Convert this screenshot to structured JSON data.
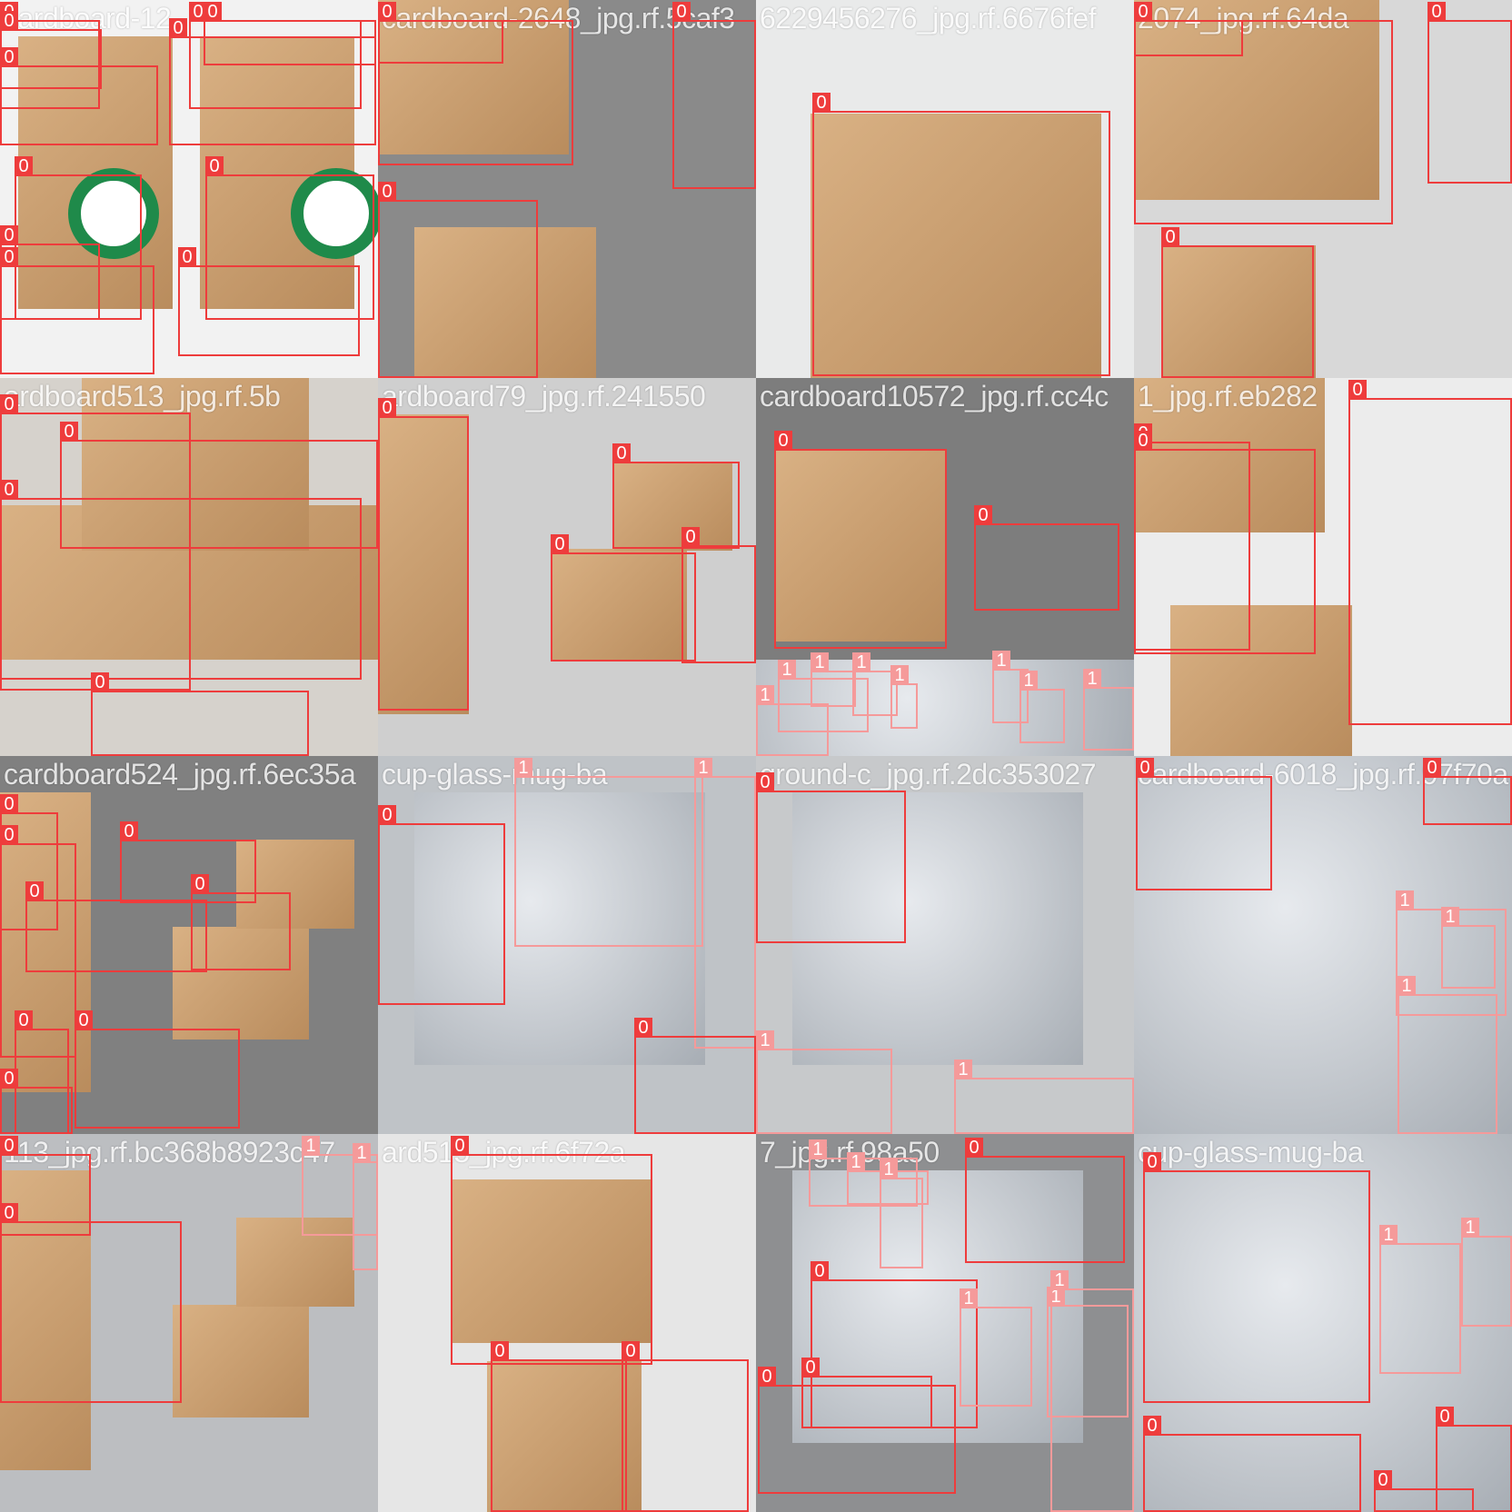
{
  "mosaic": {
    "class_colors": {
      "0": "#ee3c3c",
      "1": "#f59a9a"
    },
    "tiles": [
      {
        "filename": "cardboard-12",
        "bg": "#f2f2f2",
        "scene": "loop-carton"
      },
      {
        "filename": "cardboard-2648_jpg.rf.5caf3",
        "bg": "#8a8a8a",
        "scene": "carton-label"
      },
      {
        "filename": "6229456276_jpg.rf.6676fef",
        "bg": "#e9eaea",
        "scene": "carton-print"
      },
      {
        "filename": "2074_jpg.rf.64da",
        "bg": "#d8d8d8",
        "scene": "carton-worn"
      },
      {
        "filename": "ardboard513_jpg.rf.5b",
        "bg": "#d6d2cc",
        "scene": "carton-flat"
      },
      {
        "filename": "ardboard79_jpg.rf.241550",
        "bg": "#cfcfcf",
        "scene": "packaging-box"
      },
      {
        "filename": "cardboard10572_jpg.rf.cc4c",
        "bg": "#7d7d7d",
        "scene": "box-paper"
      },
      {
        "filename": "1_jpg.rf.eb282",
        "bg": "#ececec",
        "scene": "carton-label"
      },
      {
        "filename": "cardboard524_jpg.rf.6ec35a",
        "bg": "#808080",
        "scene": "packaging-box"
      },
      {
        "filename": "cup-glass-mug-ba",
        "bg": "#bfc3c7",
        "scene": "glass"
      },
      {
        "filename": "ground-c_jpg.rf.2dc353027",
        "bg": "#c7c9cb",
        "scene": "glass"
      },
      {
        "filename": "cardboard-6018_jpg.rf.97f70a",
        "bg": "#9aa0a8",
        "scene": "yogurt"
      },
      {
        "filename": "113_jpg.rf.bc368b8923c47",
        "bg": "#bcbec1",
        "scene": "packaging-box"
      },
      {
        "filename": "ard515_jpg.rf.6f72a",
        "bg": "#e6e6e6",
        "scene": "carton-open"
      },
      {
        "filename": "7_jpg.rf.98a50",
        "bg": "#8e8f91",
        "scene": "glass"
      },
      {
        "filename": "cup-glass-mug-ba",
        "bg": "#e9ecef",
        "scene": "yogurt"
      }
    ],
    "boxes": [
      {
        "tile": 0,
        "cls": "0",
        "label": "0"
      },
      {
        "tile": 0,
        "cls": "0",
        "label": "0"
      },
      {
        "tile": 0,
        "cls": "0",
        "label": "0"
      },
      {
        "tile": 0,
        "cls": "0",
        "label": "0"
      },
      {
        "tile": 0,
        "cls": "0",
        "label": "0"
      },
      {
        "tile": 0,
        "cls": "0",
        "label": "0"
      },
      {
        "tile": 0,
        "cls": "0",
        "label": "0"
      },
      {
        "tile": 0,
        "cls": "0",
        "label": "0"
      },
      {
        "tile": 0,
        "cls": "0",
        "label": "0"
      },
      {
        "tile": 0,
        "cls": "0",
        "label": "0"
      },
      {
        "tile": 0,
        "cls": "0",
        "label": "0"
      },
      {
        "tile": 1,
        "cls": "0",
        "label": "0"
      },
      {
        "tile": 1,
        "cls": "0",
        "label": "0"
      },
      {
        "tile": 1,
        "cls": "0",
        "label": "0"
      },
      {
        "tile": 1,
        "cls": "0",
        "label": "0"
      },
      {
        "tile": 2,
        "cls": "0",
        "label": "0"
      },
      {
        "tile": 3,
        "cls": "0",
        "label": "0"
      },
      {
        "tile": 3,
        "cls": "0",
        "label": "0"
      },
      {
        "tile": 3,
        "cls": "0",
        "label": "0"
      },
      {
        "tile": 3,
        "cls": "0",
        "label": "0"
      },
      {
        "tile": 4,
        "cls": "0",
        "label": "0"
      },
      {
        "tile": 4,
        "cls": "0",
        "label": "0"
      },
      {
        "tile": 4,
        "cls": "0",
        "label": "0"
      },
      {
        "tile": 4,
        "cls": "0",
        "label": "0"
      },
      {
        "tile": 5,
        "cls": "0",
        "label": "0"
      },
      {
        "tile": 5,
        "cls": "0",
        "label": "0"
      },
      {
        "tile": 5,
        "cls": "0",
        "label": "0"
      },
      {
        "tile": 5,
        "cls": "0",
        "label": "0"
      },
      {
        "tile": 6,
        "cls": "0",
        "label": "0"
      },
      {
        "tile": 6,
        "cls": "0",
        "label": "0"
      },
      {
        "tile": 6,
        "cls": "1",
        "label": "1"
      },
      {
        "tile": 6,
        "cls": "1",
        "label": "1"
      },
      {
        "tile": 6,
        "cls": "1",
        "label": "1"
      },
      {
        "tile": 6,
        "cls": "1",
        "label": "1"
      },
      {
        "tile": 6,
        "cls": "1",
        "label": "1"
      },
      {
        "tile": 6,
        "cls": "1",
        "label": "1"
      },
      {
        "tile": 6,
        "cls": "1",
        "label": "1"
      },
      {
        "tile": 6,
        "cls": "1",
        "label": "1"
      },
      {
        "tile": 7,
        "cls": "0",
        "label": "0"
      },
      {
        "tile": 7,
        "cls": "0",
        "label": "0"
      },
      {
        "tile": 7,
        "cls": "0",
        "label": "0"
      },
      {
        "tile": 8,
        "cls": "0",
        "label": "0"
      },
      {
        "tile": 8,
        "cls": "0",
        "label": "0"
      },
      {
        "tile": 8,
        "cls": "0",
        "label": "0"
      },
      {
        "tile": 8,
        "cls": "0",
        "label": "0"
      },
      {
        "tile": 8,
        "cls": "0",
        "label": "0"
      },
      {
        "tile": 8,
        "cls": "0",
        "label": "0"
      },
      {
        "tile": 8,
        "cls": "0",
        "label": "0"
      },
      {
        "tile": 8,
        "cls": "0",
        "label": "0"
      },
      {
        "tile": 9,
        "cls": "0",
        "label": "0"
      },
      {
        "tile": 9,
        "cls": "1",
        "label": "1"
      },
      {
        "tile": 9,
        "cls": "1",
        "label": "1"
      },
      {
        "tile": 9,
        "cls": "0",
        "label": "0"
      },
      {
        "tile": 10,
        "cls": "0",
        "label": "0"
      },
      {
        "tile": 10,
        "cls": "1",
        "label": "1"
      },
      {
        "tile": 10,
        "cls": "1",
        "label": "1"
      },
      {
        "tile": 11,
        "cls": "0",
        "label": "0"
      },
      {
        "tile": 11,
        "cls": "0",
        "label": "0"
      },
      {
        "tile": 11,
        "cls": "1",
        "label": "1"
      },
      {
        "tile": 11,
        "cls": "1",
        "label": "1"
      },
      {
        "tile": 11,
        "cls": "1",
        "label": "1"
      },
      {
        "tile": 12,
        "cls": "0",
        "label": "0"
      },
      {
        "tile": 12,
        "cls": "0",
        "label": "0"
      },
      {
        "tile": 12,
        "cls": "1",
        "label": "1"
      },
      {
        "tile": 12,
        "cls": "1",
        "label": "1"
      },
      {
        "tile": 13,
        "cls": "0",
        "label": "0"
      },
      {
        "tile": 13,
        "cls": "0",
        "label": "0"
      },
      {
        "tile": 13,
        "cls": "0",
        "label": "0"
      },
      {
        "tile": 14,
        "cls": "1",
        "label": "1"
      },
      {
        "tile": 14,
        "cls": "1",
        "label": "1"
      },
      {
        "tile": 14,
        "cls": "1",
        "label": "1"
      },
      {
        "tile": 14,
        "cls": "0",
        "label": "0"
      },
      {
        "tile": 14,
        "cls": "0",
        "label": "0"
      },
      {
        "tile": 14,
        "cls": "0",
        "label": "0"
      },
      {
        "tile": 14,
        "cls": "0",
        "label": "0"
      },
      {
        "tile": 14,
        "cls": "1",
        "label": "1"
      },
      {
        "tile": 14,
        "cls": "1",
        "label": "1"
      },
      {
        "tile": 14,
        "cls": "1",
        "label": "1"
      },
      {
        "tile": 15,
        "cls": "0",
        "label": "0"
      },
      {
        "tile": 15,
        "cls": "1",
        "label": "1"
      },
      {
        "tile": 15,
        "cls": "1",
        "label": "1"
      },
      {
        "tile": 15,
        "cls": "0",
        "label": "0"
      },
      {
        "tile": 15,
        "cls": "0",
        "label": "0"
      },
      {
        "tile": 15,
        "cls": "0",
        "label": "0"
      }
    ]
  }
}
